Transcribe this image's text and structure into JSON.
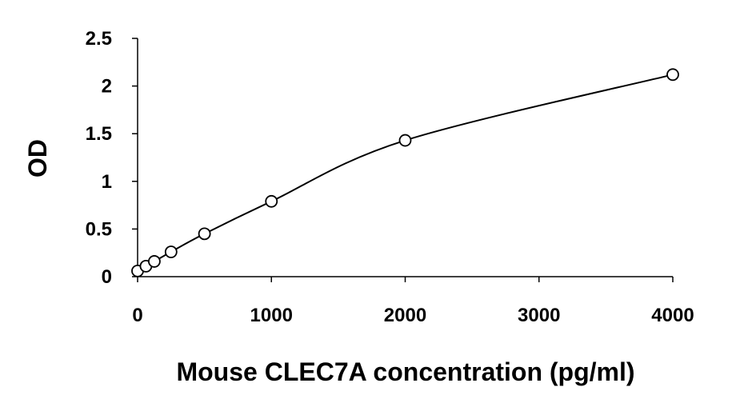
{
  "chart_data": {
    "type": "scatter",
    "title": "",
    "xlabel": "Mouse CLEC7A concentration (pg/ml)",
    "ylabel": "OD",
    "xlim": [
      0,
      4000
    ],
    "ylim": [
      0,
      2.5
    ],
    "x_ticks": [
      0,
      1000,
      2000,
      3000,
      4000
    ],
    "x_tick_labels": [
      "0",
      "1000",
      "2000",
      "3000",
      "4000"
    ],
    "y_ticks": [
      0,
      0.5,
      1,
      1.5,
      2,
      2.5
    ],
    "y_tick_labels": [
      "0",
      "0.5",
      "1",
      "1.5",
      "2",
      "2.5"
    ],
    "grid": false,
    "legend": "none",
    "marker": "open-circle",
    "fit_line": "smooth curve through points",
    "series": [
      {
        "x": [
          0,
          62.5,
          125,
          250,
          500,
          1000,
          2000,
          4000
        ],
        "y": [
          0.06,
          0.11,
          0.16,
          0.26,
          0.45,
          0.79,
          1.43,
          2.12
        ]
      }
    ],
    "colors": {
      "line": "#000000",
      "marker": "#000000"
    }
  }
}
